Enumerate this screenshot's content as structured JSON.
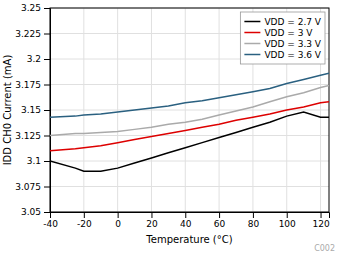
{
  "chart_data": {
    "type": "line",
    "x_label": "Temperature (°C)",
    "y_label": "IDD CH0 Current (mA)",
    "x": [
      -40,
      -25,
      -20,
      -10,
      0,
      10,
      20,
      30,
      40,
      50,
      60,
      70,
      80,
      90,
      100,
      110,
      120,
      125
    ],
    "series": [
      {
        "name": "VDD = 2.7 V",
        "color": "#000000",
        "values": [
          3.1,
          3.093,
          3.09,
          3.09,
          3.093,
          3.098,
          3.103,
          3.108,
          3.113,
          3.118,
          3.123,
          3.128,
          3.133,
          3.138,
          3.144,
          3.148,
          3.143,
          3.143
        ]
      },
      {
        "name": "VDD = 3 V",
        "color": "#dd0000",
        "values": [
          3.11,
          3.112,
          3.113,
          3.115,
          3.118,
          3.121,
          3.124,
          3.127,
          3.13,
          3.133,
          3.136,
          3.14,
          3.143,
          3.146,
          3.15,
          3.153,
          3.157,
          3.158
        ]
      },
      {
        "name": "VDD = 3.3 V",
        "color": "#aaaaaa",
        "values": [
          3.125,
          3.127,
          3.127,
          3.128,
          3.129,
          3.131,
          3.133,
          3.136,
          3.138,
          3.141,
          3.145,
          3.149,
          3.153,
          3.158,
          3.163,
          3.167,
          3.172,
          3.174
        ]
      },
      {
        "name": "VDD = 3.6 V",
        "color": "#2a6080",
        "values": [
          3.143,
          3.144,
          3.145,
          3.146,
          3.148,
          3.15,
          3.152,
          3.154,
          3.157,
          3.159,
          3.162,
          3.165,
          3.168,
          3.171,
          3.176,
          3.18,
          3.184,
          3.186
        ]
      }
    ],
    "xlim": [
      -40,
      125
    ],
    "ylim": [
      3.05,
      3.25
    ],
    "xticks": [
      -40,
      -20,
      0,
      20,
      40,
      60,
      80,
      100,
      120
    ],
    "yticks": [
      3.05,
      3.075,
      3.1,
      3.125,
      3.15,
      3.175,
      3.2,
      3.225,
      3.25
    ],
    "grid": true,
    "legend": "upper right",
    "annotations": [
      "C002"
    ]
  }
}
